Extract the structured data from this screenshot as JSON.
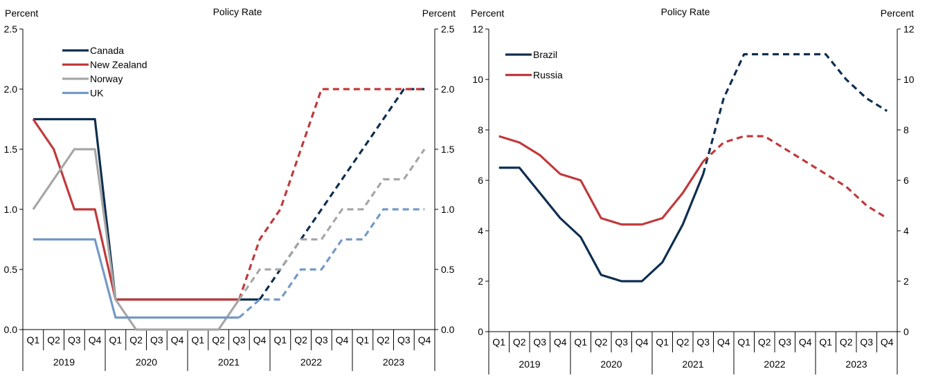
{
  "chart_data": [
    {
      "type": "line",
      "title": "Policy Rate",
      "ylabel_left": "Percent",
      "ylabel_right": "Percent",
      "ylim": [
        0,
        2.5
      ],
      "y_ticks": [
        "0.0",
        "0.5",
        "1.0",
        "1.5",
        "2.0",
        "2.5"
      ],
      "y_tick_values": [
        0,
        0.5,
        1.0,
        1.5,
        2.0,
        2.5
      ],
      "x_quarters": [
        "Q1",
        "Q2",
        "Q3",
        "Q4",
        "Q1",
        "Q2",
        "Q3",
        "Q4",
        "Q1",
        "Q2",
        "Q3",
        "Q4",
        "Q1",
        "Q2",
        "Q3",
        "Q4",
        "Q1",
        "Q2",
        "Q3",
        "Q4"
      ],
      "x_years": [
        "2019",
        "2020",
        "2021",
        "2022",
        "2023"
      ],
      "forecast_start_index": 10,
      "legend_position": "top-left",
      "series": [
        {
          "name": "Canada",
          "color": "#0d2e50",
          "values": [
            1.75,
            1.75,
            1.75,
            1.75,
            0.25,
            0.25,
            0.25,
            0.25,
            0.25,
            0.25,
            0.25,
            0.25,
            0.5,
            0.75,
            1.0,
            1.25,
            1.5,
            1.75,
            2.0,
            2.0
          ],
          "forecast_from": 11
        },
        {
          "name": "New Zealand",
          "color": "#c0393b",
          "values": [
            1.75,
            1.5,
            1.0,
            1.0,
            0.25,
            0.25,
            0.25,
            0.25,
            0.25,
            0.25,
            0.25,
            0.75,
            1.0,
            1.5,
            2.0,
            2.0,
            2.0,
            2.0,
            2.0,
            2.0
          ],
          "forecast_from": 10
        },
        {
          "name": "Norway",
          "color": "#a6a6a6",
          "values": [
            1.0,
            1.25,
            1.5,
            1.5,
            0.25,
            0.0,
            0.0,
            0.0,
            0.0,
            0.0,
            0.25,
            0.5,
            0.5,
            0.75,
            0.75,
            1.0,
            1.0,
            1.25,
            1.25,
            1.5
          ],
          "forecast_from": 10
        },
        {
          "name": "UK",
          "color": "#7399c6",
          "values": [
            0.75,
            0.75,
            0.75,
            0.75,
            0.1,
            0.1,
            0.1,
            0.1,
            0.1,
            0.1,
            0.1,
            0.25,
            0.25,
            0.5,
            0.5,
            0.75,
            0.75,
            1.0,
            1.0,
            1.0
          ],
          "forecast_from": 10
        }
      ]
    },
    {
      "type": "line",
      "title": "Policy Rate",
      "ylabel_left": "Percent",
      "ylabel_right": "Percent",
      "ylim": [
        0,
        12
      ],
      "y_ticks": [
        "0",
        "2",
        "4",
        "6",
        "8",
        "10",
        "12"
      ],
      "y_tick_values": [
        0,
        2,
        4,
        6,
        8,
        10,
        12
      ],
      "x_quarters": [
        "Q1",
        "Q2",
        "Q3",
        "Q4",
        "Q1",
        "Q2",
        "Q3",
        "Q4",
        "Q1",
        "Q2",
        "Q3",
        "Q4",
        "Q1",
        "Q2",
        "Q3",
        "Q4",
        "Q1",
        "Q2",
        "Q3",
        "Q4"
      ],
      "x_years": [
        "2019",
        "2020",
        "2021",
        "2022",
        "2023"
      ],
      "forecast_start_index": 10,
      "legend_position": "top-left",
      "series": [
        {
          "name": "Brazil",
          "color": "#0d2e50",
          "values": [
            6.5,
            6.5,
            5.5,
            4.5,
            3.75,
            2.25,
            2.0,
            2.0,
            2.75,
            4.25,
            6.25,
            9.25,
            11.0,
            11.0,
            11.0,
            11.0,
            11.0,
            10.0,
            9.25,
            8.75
          ],
          "forecast_from": 10
        },
        {
          "name": "Russia",
          "color": "#c0393b",
          "values": [
            7.75,
            7.5,
            7.0,
            6.25,
            6.0,
            4.5,
            4.25,
            4.25,
            4.5,
            5.5,
            6.75,
            7.5,
            7.75,
            7.75,
            7.25,
            6.75,
            6.25,
            5.75,
            5.0,
            4.5
          ],
          "forecast_from": 10
        }
      ]
    }
  ]
}
